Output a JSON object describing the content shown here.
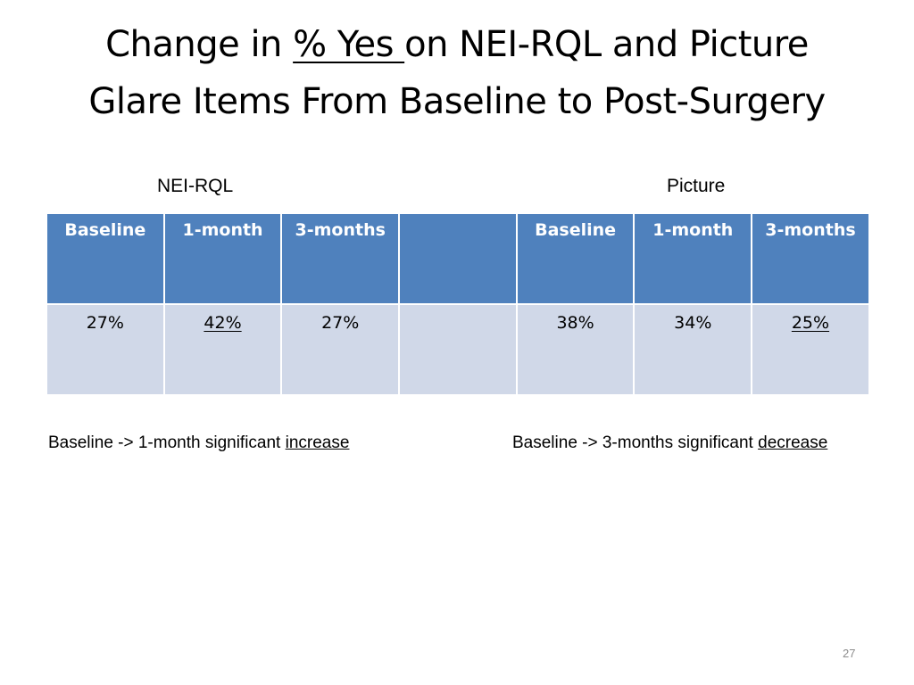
{
  "title": {
    "part1": "Change in ",
    "underlined": "% Yes ",
    "part2": "on NEI-RQL and Picture",
    "line2": "Glare Items From Baseline to Post-Surgery"
  },
  "labels": {
    "nei": "NEI-RQL",
    "picture": "Picture"
  },
  "table": {
    "headers": [
      "Baseline",
      "1-month",
      "3-months",
      "",
      "Baseline",
      "1-month",
      "3-months"
    ],
    "values": [
      "27%",
      "42%",
      "27%",
      "",
      "38%",
      "34%",
      "25%"
    ]
  },
  "notes": {
    "left": {
      "text": "Baseline -> 1-month significant ",
      "emphasis": "increase"
    },
    "right": {
      "text": "Baseline -> 3-months significant ",
      "emphasis": "decrease"
    }
  },
  "page_number": "27",
  "colors": {
    "header_bg": "#4f81bd",
    "cell_bg": "#d0d8e8"
  }
}
